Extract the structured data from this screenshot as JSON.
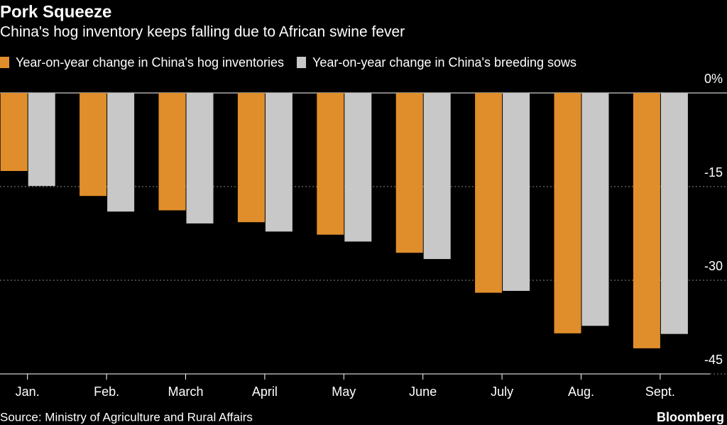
{
  "chart_data": {
    "type": "bar",
    "title": "Pork Squeeze",
    "subtitle": "China's hog inventory keeps falling due to African swine fever",
    "categories": [
      "Jan.",
      "Feb.",
      "March",
      "April",
      "May",
      "June",
      "July",
      "Aug.",
      "Sept."
    ],
    "series": [
      {
        "name": "Year-on-year change in China's hog inventories",
        "color": "#e08e2b",
        "values": [
          -12.5,
          -16.5,
          -18.8,
          -20.7,
          -22.7,
          -25.6,
          -32.0,
          -38.5,
          -40.9
        ]
      },
      {
        "name": "Year-on-year change in China's breeding sows",
        "color": "#c8c8c8",
        "values": [
          -14.9,
          -19.0,
          -20.9,
          -22.2,
          -23.8,
          -26.6,
          -31.7,
          -37.3,
          -38.6
        ]
      }
    ],
    "ylim": [
      -45,
      0
    ],
    "yticks": [
      {
        "value": 0,
        "label": "0%"
      },
      -15,
      -30,
      -45
    ],
    "grid": true,
    "source": "Source: Ministry of Agriculture and Rural Affairs",
    "brand": "Bloomberg"
  }
}
